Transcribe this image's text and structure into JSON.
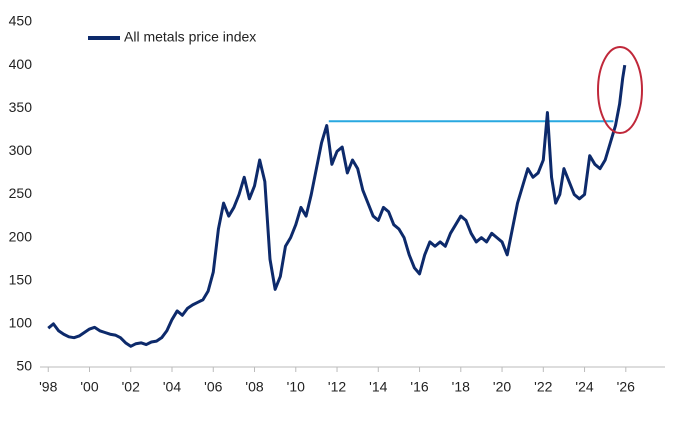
{
  "chart_data": {
    "type": "line",
    "x": [
      1998.0,
      1998.25,
      1998.5,
      1998.75,
      1999.0,
      1999.25,
      1999.5,
      1999.75,
      2000.0,
      2000.25,
      2000.5,
      2000.75,
      2001.0,
      2001.25,
      2001.5,
      2001.75,
      2002.0,
      2002.25,
      2002.5,
      2002.75,
      2003.0,
      2003.25,
      2003.5,
      2003.75,
      2004.0,
      2004.25,
      2004.5,
      2004.75,
      2005.0,
      2005.25,
      2005.5,
      2005.75,
      2006.0,
      2006.25,
      2006.5,
      2006.75,
      2007.0,
      2007.25,
      2007.5,
      2007.75,
      2008.0,
      2008.25,
      2008.5,
      2008.75,
      2009.0,
      2009.25,
      2009.5,
      2009.75,
      2010.0,
      2010.25,
      2010.5,
      2010.75,
      2011.0,
      2011.25,
      2011.5,
      2011.75,
      2012.0,
      2012.25,
      2012.5,
      2012.75,
      2013.0,
      2013.25,
      2013.5,
      2013.75,
      2014.0,
      2014.25,
      2014.5,
      2014.75,
      2015.0,
      2015.25,
      2015.5,
      2015.75,
      2016.0,
      2016.25,
      2016.5,
      2016.75,
      2017.0,
      2017.25,
      2017.5,
      2017.75,
      2018.0,
      2018.25,
      2018.5,
      2018.75,
      2019.0,
      2019.25,
      2019.5,
      2019.75,
      2020.0,
      2020.25,
      2020.5,
      2020.75,
      2021.0,
      2021.25,
      2021.5,
      2021.75,
      2022.0,
      2022.2,
      2022.4,
      2022.6,
      2022.8,
      2023.0,
      2023.25,
      2023.5,
      2023.75,
      2024.0,
      2024.25,
      2024.5,
      2024.75,
      2025.0,
      2025.25,
      2025.5,
      2025.7,
      2025.85,
      2025.95
    ],
    "series": [
      {
        "name": "All metals price index",
        "color": "#0d2a6b",
        "values": [
          95,
          100,
          92,
          88,
          85,
          84,
          86,
          90,
          94,
          96,
          92,
          90,
          88,
          87,
          84,
          78,
          74,
          77,
          78,
          76,
          79,
          80,
          84,
          92,
          105,
          115,
          110,
          118,
          122,
          125,
          128,
          138,
          160,
          210,
          240,
          225,
          235,
          250,
          270,
          245,
          260,
          290,
          265,
          175,
          140,
          155,
          190,
          200,
          215,
          235,
          225,
          250,
          280,
          310,
          330,
          285,
          300,
          305,
          275,
          290,
          280,
          255,
          240,
          225,
          220,
          235,
          230,
          215,
          210,
          200,
          180,
          165,
          158,
          180,
          195,
          190,
          195,
          190,
          205,
          215,
          225,
          220,
          205,
          195,
          200,
          195,
          205,
          200,
          195,
          180,
          210,
          240,
          260,
          280,
          270,
          275,
          290,
          345,
          270,
          240,
          250,
          280,
          265,
          250,
          245,
          250,
          295,
          285,
          280,
          290,
          310,
          330,
          355,
          385,
          400
        ]
      }
    ],
    "xlim": [
      1997.6,
      2027.9
    ],
    "xticks": [
      {
        "value": 1998,
        "label": "'98"
      },
      {
        "value": 2000,
        "label": "'00"
      },
      {
        "value": 2002,
        "label": "'02"
      },
      {
        "value": 2004,
        "label": "'04"
      },
      {
        "value": 2006,
        "label": "'06"
      },
      {
        "value": 2008,
        "label": "'08"
      },
      {
        "value": 2010,
        "label": "'10"
      },
      {
        "value": 2012,
        "label": "'12"
      },
      {
        "value": 2014,
        "label": "'14"
      },
      {
        "value": 2016,
        "label": "'16"
      },
      {
        "value": 2018,
        "label": "'18"
      },
      {
        "value": 2020,
        "label": "'20"
      },
      {
        "value": 2022,
        "label": "'22"
      },
      {
        "value": 2024,
        "label": "'24"
      },
      {
        "value": 2026,
        "label": "'26"
      }
    ],
    "ylim": [
      50,
      450
    ],
    "yticks": [
      50,
      100,
      150,
      200,
      250,
      300,
      350,
      400,
      450
    ],
    "grid": false,
    "legend": "top-left",
    "reference_line": {
      "y": 335,
      "x": [
        2011.6,
        2025.4
      ],
      "color": "#29a8e0"
    }
  }
}
